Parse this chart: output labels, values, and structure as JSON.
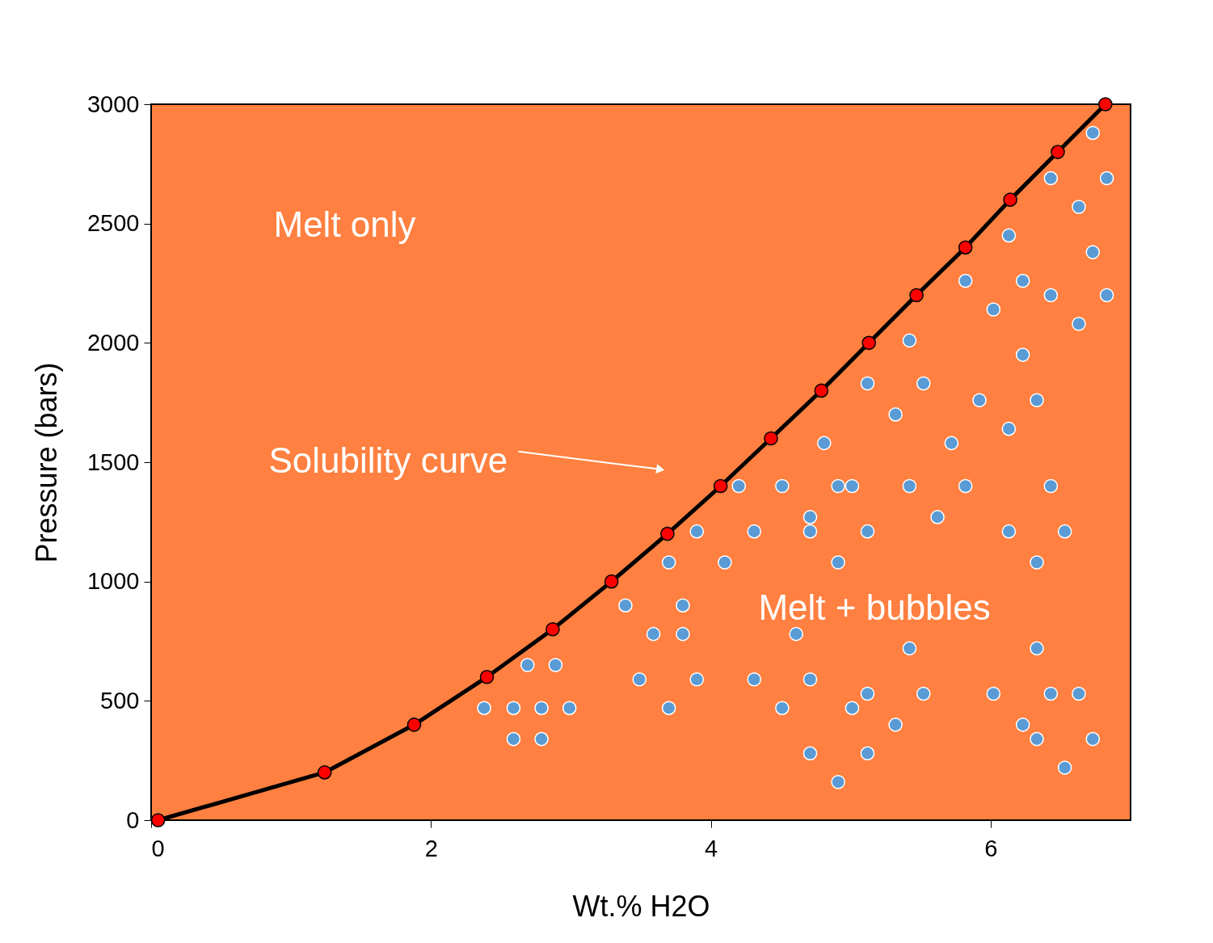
{
  "chart_data": {
    "type": "scatter",
    "xlabel": "Wt.% H2O",
    "ylabel": "Pressure (bars)",
    "xlim": [
      0,
      7
    ],
    "xticks": [
      0,
      2,
      4,
      6
    ],
    "ylim": [
      0,
      3000
    ],
    "yticks": [
      0,
      500,
      1000,
      1500,
      2000,
      2500,
      3000
    ],
    "grid": false,
    "annotations": [
      "Melt only",
      "Solubility curve",
      "Melt + bubbles"
    ],
    "series": [
      {
        "type": "line",
        "color": "#000000",
        "marker": "none",
        "x": [
          0.05,
          1.24,
          1.88,
          2.4,
          2.87,
          3.29,
          3.69,
          4.07,
          4.43,
          4.79,
          5.13,
          5.47,
          5.82,
          6.14,
          6.48,
          6.82
        ],
        "values": [
          0,
          200,
          400,
          600,
          800,
          1000,
          1200,
          1400,
          1600,
          1800,
          2000,
          2200,
          2400,
          2600,
          2800,
          3000
        ]
      },
      {
        "type": "scatter",
        "color": "#ff0000",
        "marker": "circle",
        "x": [
          0.05,
          1.24,
          1.88,
          2.4,
          2.87,
          3.29,
          3.69,
          4.07,
          4.43,
          4.79,
          5.13,
          5.47,
          5.82,
          6.14,
          6.48,
          6.82
        ],
        "values": [
          0,
          200,
          400,
          600,
          800,
          1000,
          1200,
          1400,
          1600,
          1800,
          2000,
          2200,
          2400,
          2600,
          2800,
          3000
        ]
      },
      {
        "type": "scatter",
        "color": "#5b9bd5",
        "marker": "circle",
        "x": [
          2.38,
          2.59,
          2.79,
          2.99,
          2.59,
          2.79,
          2.69,
          2.89,
          3.39,
          3.49,
          3.59,
          3.7,
          3.7,
          3.8,
          3.8,
          3.9,
          3.9,
          4.1,
          4.2,
          4.31,
          4.31,
          4.51,
          4.51,
          4.61,
          4.71,
          4.71,
          4.71,
          4.71,
          4.81,
          4.91,
          4.91,
          4.91,
          5.01,
          5.01,
          5.12,
          5.12,
          5.12,
          5.12,
          5.32,
          5.32,
          5.42,
          5.42,
          5.42,
          5.52,
          5.52,
          5.62,
          5.72,
          5.82,
          5.82,
          5.92,
          6.02,
          6.02,
          6.13,
          6.13,
          6.13,
          6.23,
          6.23,
          6.23,
          6.33,
          6.33,
          6.33,
          6.33,
          6.43,
          6.43,
          6.43,
          6.43,
          6.53,
          6.63,
          6.63,
          6.63,
          6.73,
          6.73,
          6.73,
          6.53,
          6.83,
          6.83
        ],
        "values": [
          470,
          470,
          470,
          470,
          340,
          340,
          650,
          650,
          900,
          590,
          780,
          1080,
          470,
          900,
          780,
          1210,
          590,
          1080,
          1400,
          1210,
          590,
          1400,
          470,
          780,
          1270,
          1210,
          590,
          280,
          1580,
          1400,
          1080,
          160,
          1400,
          470,
          1830,
          1210,
          530,
          280,
          1700,
          400,
          2010,
          1400,
          720,
          1830,
          530,
          1270,
          1580,
          2260,
          1400,
          1760,
          2140,
          530,
          2450,
          1640,
          1210,
          2260,
          1950,
          400,
          1760,
          1080,
          720,
          340,
          2690,
          2200,
          1400,
          530,
          1210,
          2570,
          2080,
          530,
          2880,
          2380,
          340,
          220,
          2690,
          2200
        ]
      }
    ]
  }
}
